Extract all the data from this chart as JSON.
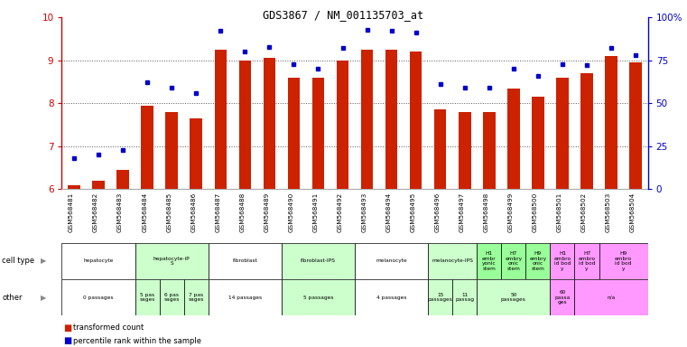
{
  "title": "GDS3867 / NM_001135703_at",
  "samples": [
    "GSM568481",
    "GSM568482",
    "GSM568483",
    "GSM568484",
    "GSM568485",
    "GSM568486",
    "GSM568487",
    "GSM568488",
    "GSM568489",
    "GSM568490",
    "GSM568491",
    "GSM568492",
    "GSM568493",
    "GSM568494",
    "GSM568495",
    "GSM568496",
    "GSM568497",
    "GSM568498",
    "GSM568499",
    "GSM568500",
    "GSM568501",
    "GSM568502",
    "GSM568503",
    "GSM568504"
  ],
  "red_values": [
    6.1,
    6.2,
    6.45,
    7.95,
    7.8,
    7.65,
    9.25,
    9.0,
    9.05,
    8.6,
    8.6,
    9.0,
    9.25,
    9.25,
    9.2,
    7.85,
    7.8,
    7.8,
    8.35,
    8.15,
    8.6,
    8.7,
    9.1,
    8.95
  ],
  "blue_values": [
    18,
    20,
    23,
    62,
    59,
    56,
    92,
    80,
    83,
    73,
    70,
    82,
    93,
    92,
    91,
    61,
    59,
    59,
    70,
    66,
    73,
    72,
    82,
    78
  ],
  "ylim_left": [
    6,
    10
  ],
  "ylim_right": [
    0,
    100
  ],
  "yticks_left": [
    6,
    7,
    8,
    9,
    10
  ],
  "yticks_right": [
    0,
    25,
    50,
    75,
    100
  ],
  "ytick_labels_right": [
    "0",
    "25",
    "50",
    "75",
    "100%"
  ],
  "bar_color": "#CC2200",
  "dot_color": "#0000CC",
  "cell_type_groups": [
    {
      "label": "hepatocyte",
      "start": 0,
      "end": 2,
      "color": "#ffffff"
    },
    {
      "label": "hepatocyte-iP\nS",
      "start": 3,
      "end": 5,
      "color": "#ccffcc"
    },
    {
      "label": "fibroblast",
      "start": 6,
      "end": 8,
      "color": "#ffffff"
    },
    {
      "label": "fibroblast-IPS",
      "start": 9,
      "end": 11,
      "color": "#ccffcc"
    },
    {
      "label": "melanocyte",
      "start": 12,
      "end": 14,
      "color": "#ffffff"
    },
    {
      "label": "melanocyte-IPS",
      "start": 15,
      "end": 16,
      "color": "#ccffcc"
    },
    {
      "label": "H1\nembr\nyonic\nstem",
      "start": 17,
      "end": 17,
      "color": "#99ff99"
    },
    {
      "label": "H7\nembry\nonic\nstem",
      "start": 18,
      "end": 18,
      "color": "#99ff99"
    },
    {
      "label": "H9\nembry\nonic\nstem",
      "start": 19,
      "end": 19,
      "color": "#99ff99"
    },
    {
      "label": "H1\nembro\nid bod\ny",
      "start": 20,
      "end": 20,
      "color": "#ff99ff"
    },
    {
      "label": "H7\nembro\nid bod\ny",
      "start": 21,
      "end": 21,
      "color": "#ff99ff"
    },
    {
      "label": "H9\nembro\nid bod\ny",
      "start": 22,
      "end": 23,
      "color": "#ff99ff"
    }
  ],
  "other_groups": [
    {
      "label": "0 passages",
      "start": 0,
      "end": 2,
      "color": "#ffffff"
    },
    {
      "label": "5 pas\nsages",
      "start": 3,
      "end": 3,
      "color": "#ccffcc"
    },
    {
      "label": "6 pas\nsages",
      "start": 4,
      "end": 4,
      "color": "#ccffcc"
    },
    {
      "label": "7 pas\nsages",
      "start": 5,
      "end": 5,
      "color": "#ccffcc"
    },
    {
      "label": "14 passages",
      "start": 6,
      "end": 8,
      "color": "#ffffff"
    },
    {
      "label": "5 passages",
      "start": 9,
      "end": 11,
      "color": "#ccffcc"
    },
    {
      "label": "4 passages",
      "start": 12,
      "end": 14,
      "color": "#ffffff"
    },
    {
      "label": "15\npassages",
      "start": 15,
      "end": 15,
      "color": "#ccffcc"
    },
    {
      "label": "11\npassag",
      "start": 16,
      "end": 16,
      "color": "#ccffcc"
    },
    {
      "label": "50\npassages",
      "start": 17,
      "end": 19,
      "color": "#ccffcc"
    },
    {
      "label": "60\npassa\nges",
      "start": 20,
      "end": 20,
      "color": "#ff99ff"
    },
    {
      "label": "n/a",
      "start": 21,
      "end": 23,
      "color": "#ff99ff"
    }
  ],
  "grid_color": "#888888",
  "bar_color_red": "#CC2200",
  "dot_color_blue": "#0000CC",
  "left_label_color": "#CC0000",
  "right_label_color": "#0000CC"
}
